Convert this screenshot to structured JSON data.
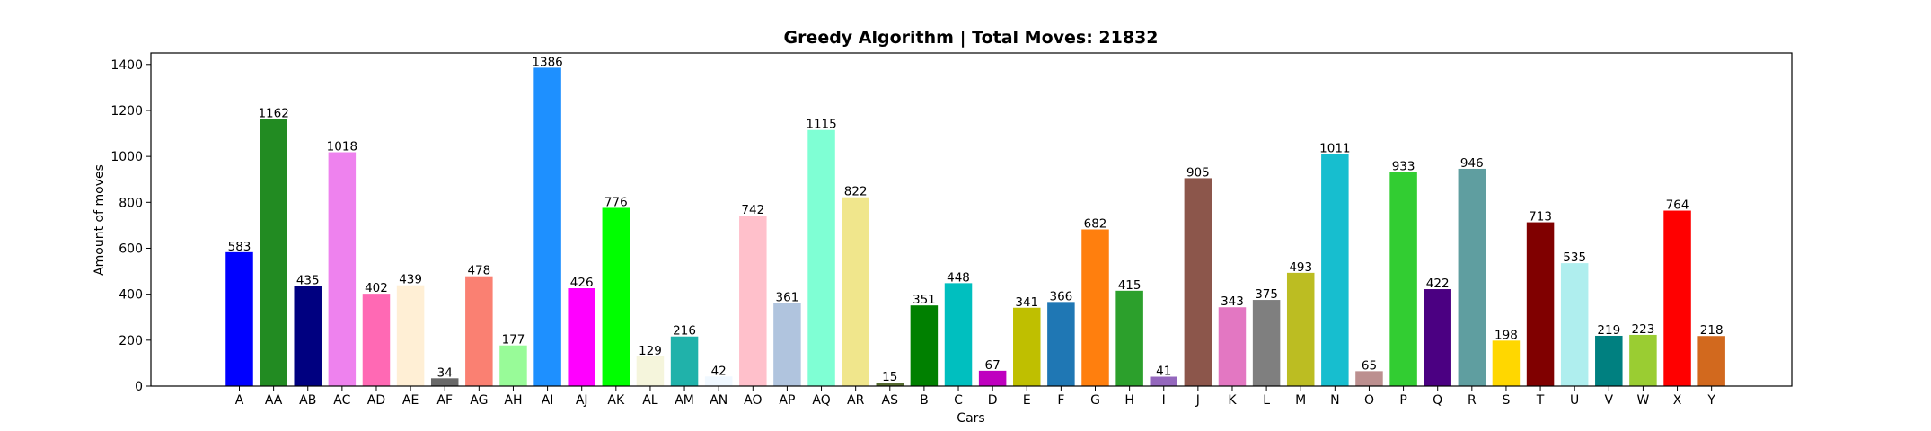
{
  "chart_data": {
    "type": "bar",
    "title": "Greedy Algorithm | Total Moves: 21832",
    "xlabel": "Cars",
    "ylabel": "Amount of moves",
    "ylim": [
      0,
      1450
    ],
    "yticks": [
      0,
      200,
      400,
      600,
      800,
      1000,
      1200,
      1400
    ],
    "grid": false,
    "categories": [
      "A",
      "AA",
      "AB",
      "AC",
      "AD",
      "AE",
      "AF",
      "AG",
      "AH",
      "AI",
      "AJ",
      "AK",
      "AL",
      "AM",
      "AN",
      "AO",
      "AP",
      "AQ",
      "AR",
      "AS",
      "B",
      "C",
      "D",
      "E",
      "F",
      "G",
      "H",
      "I",
      "J",
      "K",
      "L",
      "M",
      "N",
      "O",
      "P",
      "Q",
      "R",
      "S",
      "T",
      "U",
      "V",
      "W",
      "X",
      "Y"
    ],
    "values": [
      583,
      1162,
      435,
      1018,
      402,
      439,
      34,
      478,
      177,
      1386,
      426,
      776,
      129,
      216,
      42,
      742,
      361,
      1115,
      822,
      15,
      351,
      448,
      67,
      341,
      366,
      682,
      415,
      41,
      905,
      343,
      375,
      493,
      1011,
      65,
      933,
      422,
      946,
      198,
      713,
      535,
      219,
      223,
      764,
      218
    ],
    "colors": [
      "#0000ff",
      "#228b22",
      "#000080",
      "#ee82ee",
      "#ff69b4",
      "#ffefd5",
      "#696969",
      "#fa8072",
      "#98fb98",
      "#1e90ff",
      "#ff00ff",
      "#00ff00",
      "#f5f5dc",
      "#20b2aa",
      "#f0f8ff",
      "#ffc0cb",
      "#b0c4de",
      "#7fffd4",
      "#f0e68c",
      "#556b2f",
      "#008000",
      "#00bfbf",
      "#bf00bf",
      "#bfbf00",
      "#1f77b4",
      "#ff7f0e",
      "#2ca02c",
      "#9467bd",
      "#8c564b",
      "#e377c2",
      "#7f7f7f",
      "#bcbd22",
      "#17becf",
      "#bc8f8f",
      "#32cd32",
      "#4b0082",
      "#5f9ea0",
      "#ffd700",
      "#800000",
      "#afeeee",
      "#008080",
      "#9acd32",
      "#ff0000",
      "#d2691e"
    ]
  }
}
